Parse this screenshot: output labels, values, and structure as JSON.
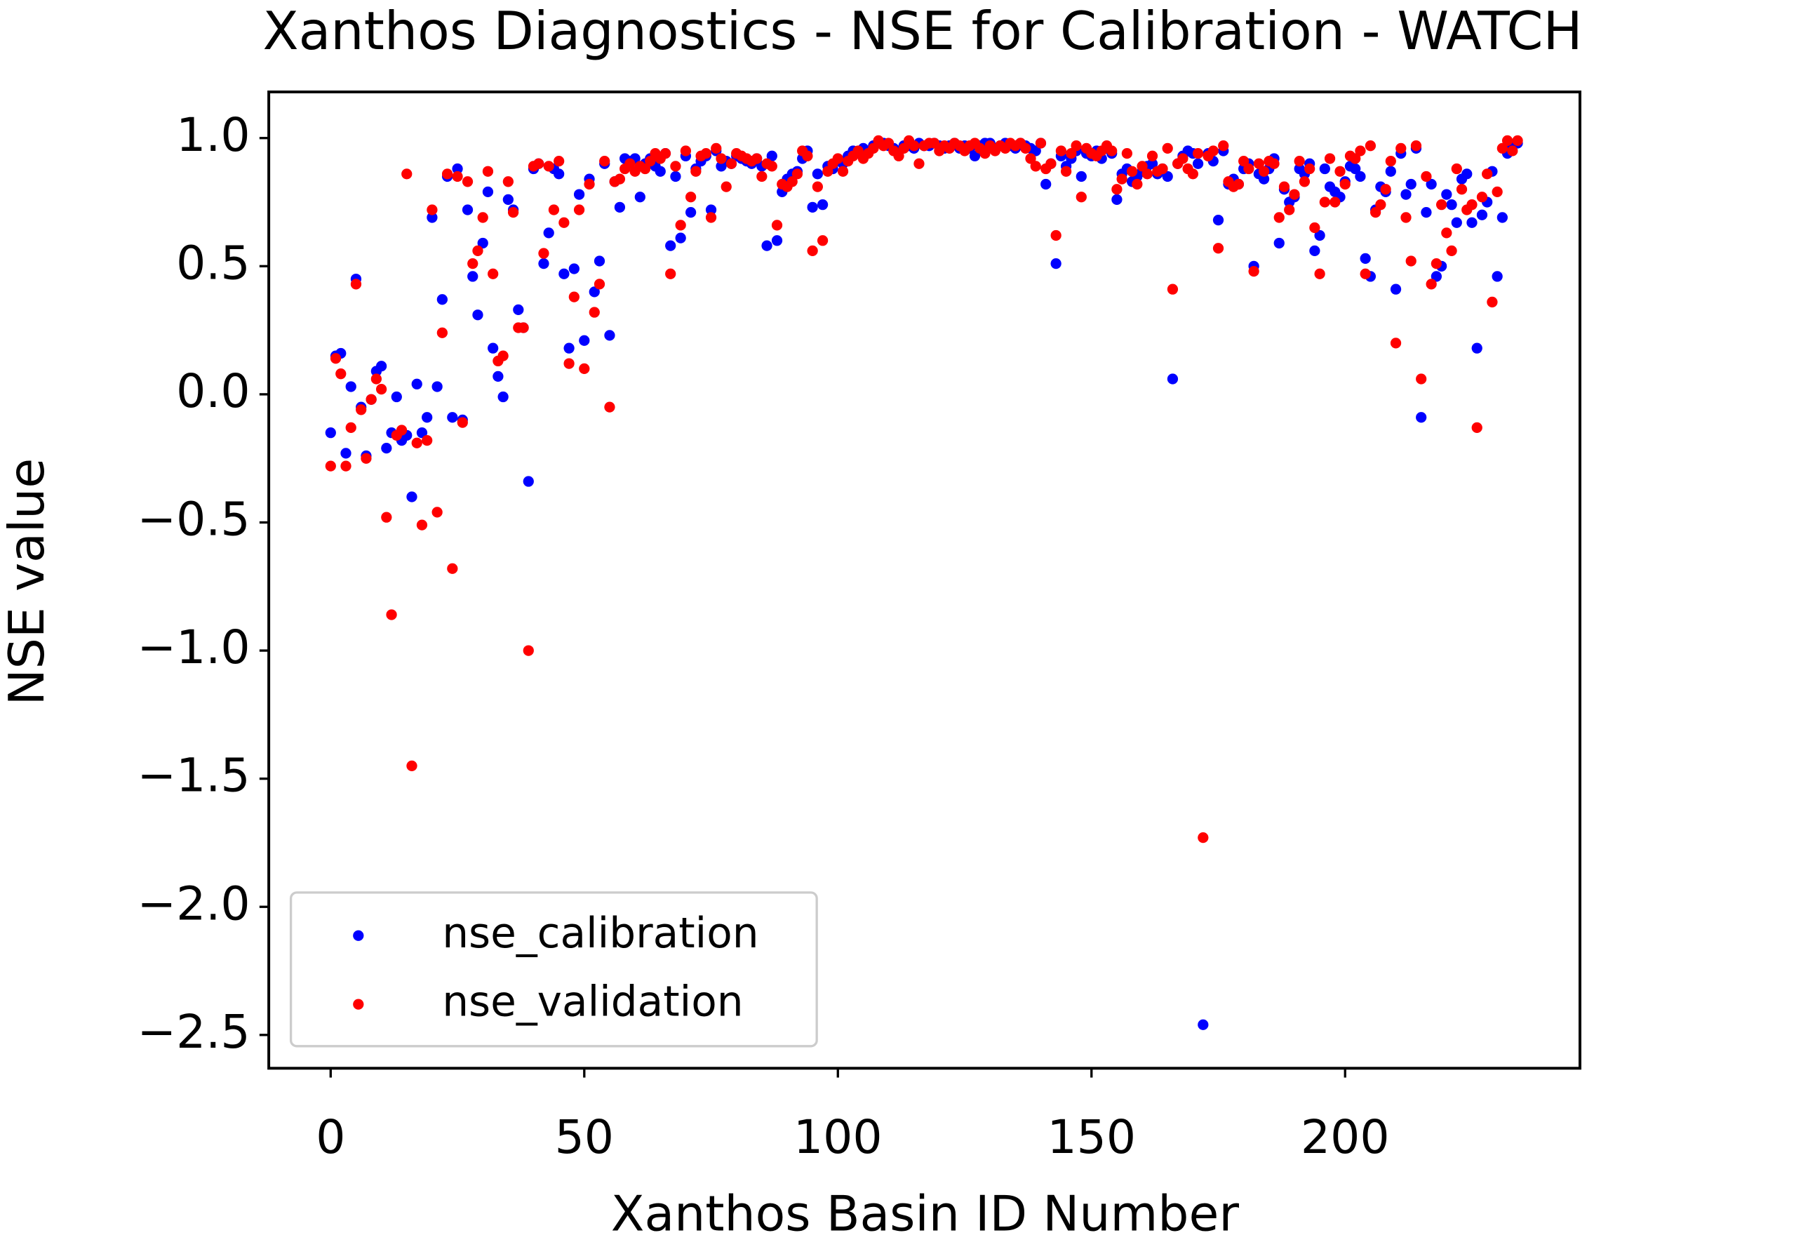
{
  "chart_data": {
    "type": "scatter",
    "title": "Xanthos Diagnostics - NSE for Calibration - WATCH",
    "xlabel": "Xanthos Basin ID Number",
    "ylabel": "NSE value",
    "x": [
      0,
      1,
      2,
      3,
      4,
      5,
      6,
      7,
      8,
      9,
      10,
      11,
      12,
      13,
      14,
      15,
      16,
      17,
      18,
      19,
      20,
      21,
      22,
      23,
      24,
      25,
      26,
      27,
      28,
      29,
      30,
      31,
      32,
      33,
      34,
      35,
      36,
      37,
      38,
      39,
      40,
      41,
      42,
      43,
      44,
      45,
      46,
      47,
      48,
      49,
      50,
      51,
      52,
      53,
      54,
      55,
      56,
      57,
      58,
      59,
      60,
      61,
      62,
      63,
      64,
      65,
      66,
      67,
      68,
      69,
      70,
      71,
      72,
      73,
      74,
      75,
      76,
      77,
      78,
      79,
      80,
      81,
      82,
      83,
      84,
      85,
      86,
      87,
      88,
      89,
      90,
      91,
      92,
      93,
      94,
      95,
      96,
      97,
      98,
      99,
      100,
      101,
      102,
      103,
      104,
      105,
      106,
      107,
      108,
      109,
      110,
      111,
      112,
      113,
      114,
      115,
      116,
      117,
      118,
      119,
      120,
      121,
      122,
      123,
      124,
      125,
      126,
      127,
      128,
      129,
      130,
      131,
      132,
      133,
      134,
      135,
      136,
      137,
      138,
      139,
      140,
      141,
      142,
      143,
      144,
      145,
      146,
      147,
      148,
      149,
      150,
      151,
      152,
      153,
      154,
      155,
      156,
      157,
      158,
      159,
      160,
      161,
      162,
      163,
      164,
      165,
      166,
      167,
      168,
      169,
      170,
      171,
      172,
      173,
      174,
      175,
      176,
      177,
      178,
      179,
      180,
      181,
      182,
      183,
      184,
      185,
      186,
      187,
      188,
      189,
      190,
      191,
      192,
      193,
      194,
      195,
      196,
      197,
      198,
      199,
      200,
      201,
      202,
      203,
      204,
      205,
      206,
      207,
      208,
      209,
      210,
      211,
      212,
      213,
      214,
      215,
      216,
      217,
      218,
      219,
      220,
      221,
      222,
      223,
      224,
      225,
      226,
      227,
      228,
      229,
      230,
      231,
      232,
      233,
      234
    ],
    "series": [
      {
        "name": "nse_calibration",
        "color": "#0000ff",
        "values": [
          -0.15,
          0.15,
          0.16,
          -0.23,
          0.03,
          0.45,
          -0.05,
          -0.24,
          -0.02,
          0.09,
          0.11,
          -0.21,
          -0.15,
          -0.01,
          -0.18,
          -0.16,
          -0.4,
          0.04,
          -0.15,
          -0.09,
          0.69,
          0.03,
          0.37,
          0.85,
          -0.09,
          0.88,
          -0.1,
          0.72,
          0.46,
          0.31,
          0.59,
          0.79,
          0.18,
          0.07,
          -0.01,
          0.76,
          0.72,
          0.33,
          0.26,
          -0.34,
          0.88,
          0.9,
          0.51,
          0.63,
          0.88,
          0.86,
          0.47,
          0.18,
          0.49,
          0.78,
          0.21,
          0.84,
          0.4,
          0.52,
          0.9,
          0.23,
          0.83,
          0.73,
          0.92,
          0.91,
          0.92,
          0.77,
          0.9,
          0.92,
          0.89,
          0.87,
          0.94,
          0.58,
          0.85,
          0.61,
          0.93,
          0.71,
          0.88,
          0.91,
          0.93,
          0.72,
          0.95,
          0.89,
          0.91,
          0.9,
          0.93,
          0.92,
          0.91,
          0.9,
          0.92,
          0.89,
          0.58,
          0.93,
          0.6,
          0.79,
          0.84,
          0.86,
          0.87,
          0.92,
          0.95,
          0.73,
          0.86,
          0.74,
          0.89,
          0.88,
          0.91,
          0.9,
          0.93,
          0.95,
          0.94,
          0.96,
          0.95,
          0.97,
          0.98,
          0.98,
          0.97,
          0.96,
          0.95,
          0.97,
          0.97,
          0.96,
          0.98,
          0.97,
          0.97,
          0.98,
          0.97,
          0.96,
          0.97,
          0.98,
          0.96,
          0.97,
          0.96,
          0.93,
          0.97,
          0.98,
          0.98,
          0.96,
          0.97,
          0.98,
          0.97,
          0.96,
          0.98,
          0.97,
          0.96,
          0.95,
          0.98,
          0.82,
          0.9,
          0.51,
          0.93,
          0.89,
          0.92,
          0.95,
          0.85,
          0.94,
          0.93,
          0.95,
          0.92,
          0.96,
          0.94,
          0.76,
          0.86,
          0.88,
          0.83,
          0.85,
          0.87,
          0.89,
          0.9,
          0.86,
          0.88,
          0.85,
          0.06,
          0.9,
          0.93,
          0.95,
          0.94,
          0.9,
          -2.46,
          0.94,
          0.91,
          0.68,
          0.95,
          0.82,
          0.84,
          0.82,
          0.88,
          0.9,
          0.5,
          0.86,
          0.84,
          0.88,
          0.92,
          0.59,
          0.8,
          0.75,
          0.77,
          0.88,
          0.86,
          0.9,
          0.56,
          0.62,
          0.88,
          0.81,
          0.79,
          0.77,
          0.83,
          0.89,
          0.88,
          0.85,
          0.53,
          0.46,
          0.72,
          0.81,
          0.79,
          0.87,
          0.41,
          0.94,
          0.78,
          0.82,
          0.96,
          -0.09,
          0.71,
          0.82,
          0.46,
          0.5,
          0.78,
          0.74,
          0.67,
          0.84,
          0.86,
          0.67,
          0.18,
          0.7,
          0.75,
          0.87,
          0.46,
          0.69,
          0.94,
          0.97,
          0.98
        ]
      },
      {
        "name": "nse_validation",
        "color": "#ff0000",
        "values": [
          -0.28,
          0.14,
          0.08,
          -0.28,
          -0.13,
          0.43,
          -0.06,
          -0.25,
          -0.02,
          0.06,
          0.02,
          -0.48,
          -0.86,
          -0.16,
          -0.14,
          0.86,
          -1.45,
          -0.19,
          -0.51,
          -0.18,
          0.72,
          -0.46,
          0.24,
          0.86,
          -0.68,
          0.85,
          -0.11,
          0.83,
          0.51,
          0.56,
          0.69,
          0.87,
          0.47,
          0.13,
          0.15,
          0.83,
          0.71,
          0.26,
          0.26,
          -1.0,
          0.89,
          0.9,
          0.55,
          0.89,
          0.72,
          0.91,
          0.67,
          0.12,
          0.38,
          0.72,
          0.1,
          0.82,
          0.32,
          0.43,
          0.91,
          -0.05,
          0.83,
          0.84,
          0.88,
          0.9,
          0.87,
          0.89,
          0.88,
          0.91,
          0.94,
          0.92,
          0.94,
          0.47,
          0.89,
          0.66,
          0.95,
          0.77,
          0.87,
          0.93,
          0.94,
          0.69,
          0.96,
          0.92,
          0.81,
          0.9,
          0.94,
          0.93,
          0.92,
          0.91,
          0.92,
          0.85,
          0.9,
          0.89,
          0.66,
          0.82,
          0.81,
          0.83,
          0.86,
          0.95,
          0.93,
          0.56,
          0.81,
          0.6,
          0.87,
          0.9,
          0.92,
          0.87,
          0.91,
          0.93,
          0.95,
          0.92,
          0.94,
          0.96,
          0.99,
          0.97,
          0.98,
          0.95,
          0.93,
          0.96,
          0.99,
          0.97,
          0.9,
          0.97,
          0.98,
          0.98,
          0.95,
          0.97,
          0.96,
          0.98,
          0.97,
          0.95,
          0.97,
          0.98,
          0.96,
          0.94,
          0.97,
          0.95,
          0.97,
          0.96,
          0.98,
          0.97,
          0.98,
          0.96,
          0.92,
          0.89,
          0.98,
          0.88,
          0.9,
          0.62,
          0.95,
          0.87,
          0.94,
          0.97,
          0.77,
          0.96,
          0.94,
          0.93,
          0.95,
          0.97,
          0.95,
          0.8,
          0.84,
          0.94,
          0.87,
          0.82,
          0.89,
          0.86,
          0.93,
          0.87,
          0.88,
          0.96,
          0.41,
          0.9,
          0.92,
          0.88,
          0.86,
          0.94,
          -1.73,
          0.93,
          0.95,
          0.57,
          0.97,
          0.83,
          0.81,
          0.82,
          0.91,
          0.88,
          0.48,
          0.9,
          0.87,
          0.91,
          0.9,
          0.69,
          0.81,
          0.72,
          0.78,
          0.91,
          0.83,
          0.88,
          0.65,
          0.47,
          0.75,
          0.92,
          0.75,
          0.87,
          0.82,
          0.93,
          0.92,
          0.95,
          0.47,
          0.97,
          0.71,
          0.74,
          0.8,
          0.91,
          0.2,
          0.96,
          0.69,
          0.52,
          0.97,
          0.06,
          0.85,
          0.43,
          0.51,
          0.74,
          0.63,
          0.56,
          0.88,
          0.8,
          0.72,
          0.74,
          -0.13,
          0.77,
          0.86,
          0.36,
          0.79,
          0.96,
          0.99,
          0.95,
          0.99
        ]
      }
    ],
    "xlim": [
      -12.2,
      246.3
    ],
    "ylim": [
      -2.63,
      1.18
    ],
    "xticks": [
      0,
      50,
      100,
      150,
      200
    ],
    "yticks": [
      {
        "value": 1,
        "label": "1.0"
      },
      0.5,
      {
        "value": 0,
        "label": "0.0"
      },
      {
        "value": -0.5,
        "label": "−0.5"
      },
      {
        "value": -1,
        "label": "−1.0"
      },
      {
        "value": -1.5,
        "label": "−1.5"
      },
      {
        "value": -2,
        "label": "−2.0"
      },
      {
        "value": -2.5,
        "label": "−2.5"
      }
    ],
    "legend": "lower left",
    "grid": false
  }
}
